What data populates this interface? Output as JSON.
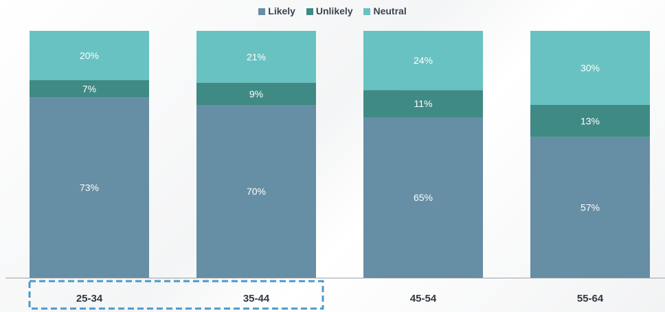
{
  "chart_data": {
    "type": "bar",
    "stacked": true,
    "categories": [
      "25-34",
      "35-44",
      "45-54",
      "55-64"
    ],
    "series": [
      {
        "name": "Likely",
        "values": [
          73,
          70,
          65,
          57
        ],
        "labels": [
          "73%",
          "70%",
          "65%",
          "57%"
        ],
        "color": "#668ea4"
      },
      {
        "name": "Unlikely",
        "values": [
          7,
          9,
          11,
          13
        ],
        "labels": [
          "7%",
          "9%",
          "11%",
          "13%"
        ],
        "color": "#3f8a84"
      },
      {
        "name": "Neutral",
        "values": [
          20,
          21,
          24,
          30
        ],
        "labels": [
          "20%",
          "21%",
          "24%",
          "30%"
        ],
        "color": "#68c2c2"
      }
    ],
    "ylim": [
      0,
      100
    ],
    "legend_position": "top-center",
    "highlighted_categories": [
      "25-34",
      "35-44"
    ],
    "highlight_color": "#4a98c9",
    "grid": false
  }
}
